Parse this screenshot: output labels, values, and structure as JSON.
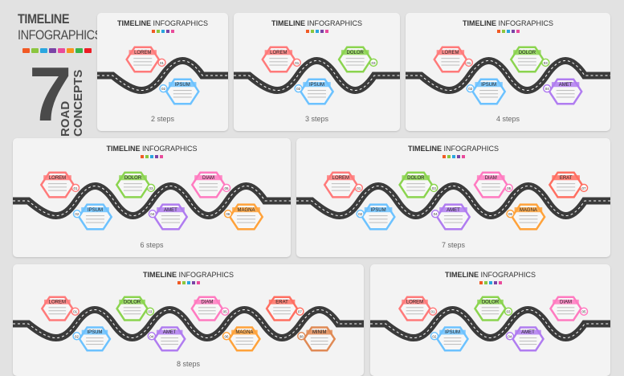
{
  "header": {
    "title_line1": "TIMELINE",
    "title_line2": "INFOGRAPHICS",
    "number": "7",
    "vertical_line1": "ROAD",
    "vertical_line2": "CONCEPTS",
    "dot_colors": [
      "#f15a24",
      "#8cc63f",
      "#2aa6df",
      "#7a43a6",
      "#e94b9b",
      "#f7941d",
      "#39b54a",
      "#ed1c24"
    ]
  },
  "panel_title_bold": "TIMELINE",
  "panel_title_rest": "INFOGRAPHICS",
  "panel_dot_colors": [
    "#f15a24",
    "#8cc63f",
    "#2aa6df",
    "#7a43a6",
    "#e94b9b"
  ],
  "step_labels": [
    "LOREM",
    "IPSUM",
    "DOLOR",
    "AMET",
    "DIAM",
    "MAGNA",
    "ERAT",
    "MINIM"
  ],
  "step_numbers": [
    "01",
    "02",
    "03",
    "04",
    "05",
    "06",
    "07",
    "08"
  ],
  "step_colors": [
    "#ff7a7a",
    "#6cc2ff",
    "#8bd44f",
    "#b07cf0",
    "#ff7ac0",
    "#ffa23a",
    "#ff6f61",
    "#e08a55"
  ],
  "panels": [
    {
      "caption": "2 steps",
      "steps": 2
    },
    {
      "caption": "3 steps",
      "steps": 3
    },
    {
      "caption": "4 steps",
      "steps": 4
    },
    {
      "caption": "6 steps",
      "steps": 6
    },
    {
      "caption": "7 steps",
      "steps": 7
    },
    {
      "caption": "8 steps",
      "steps": 8
    },
    {
      "caption": "",
      "steps": 5
    }
  ]
}
